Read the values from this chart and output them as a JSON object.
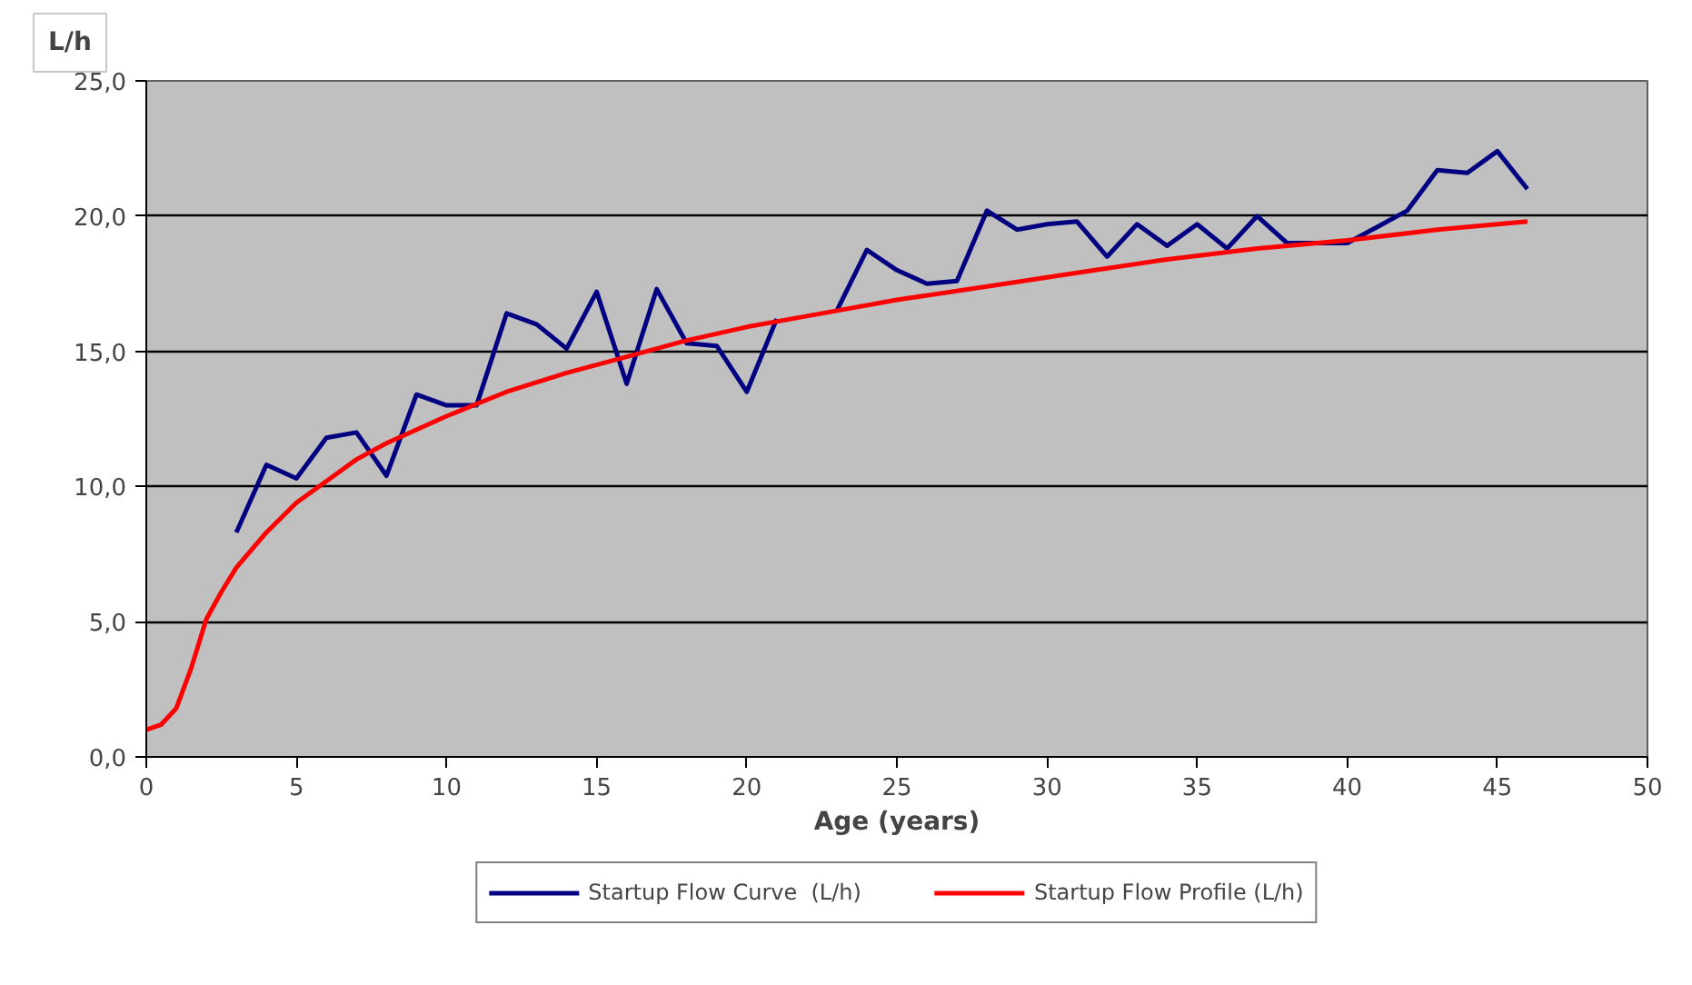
{
  "chart_data": {
    "type": "line",
    "xlabel": "Age (years)",
    "ylabel": "L/h",
    "xlim": [
      0,
      50
    ],
    "ylim": [
      0,
      25
    ],
    "xticks": [
      0,
      5,
      10,
      15,
      20,
      25,
      30,
      35,
      40,
      45,
      50
    ],
    "yticks": [
      {
        "value": 0,
        "label": "0,0"
      },
      {
        "value": 5,
        "label": "5,0"
      },
      {
        "value": 10,
        "label": "10,0"
      },
      {
        "value": 15,
        "label": "15,0"
      },
      {
        "value": 20,
        "label": "20,0"
      },
      {
        "value": 25,
        "label": "25,0"
      }
    ],
    "grid": "y",
    "legend": "bottom",
    "marker": "none",
    "line_style": "solid",
    "series": [
      {
        "name": "Startup Flow Curve  (L/h)",
        "color": "#000080",
        "x": [
          3,
          4,
          5,
          6,
          7,
          8,
          9,
          10,
          11,
          12,
          13,
          14,
          15,
          16,
          17,
          18,
          19,
          20,
          21,
          22,
          23,
          24,
          25,
          26,
          27,
          28,
          29,
          30,
          31,
          32,
          33,
          34,
          35,
          36,
          37,
          38,
          39,
          40,
          41,
          42,
          43,
          44,
          45,
          46
        ],
        "values": [
          8.3,
          10.8,
          10.3,
          11.8,
          12.0,
          10.4,
          13.4,
          13.0,
          13.0,
          16.4,
          16.0,
          15.1,
          17.2,
          13.8,
          17.3,
          15.3,
          15.2,
          13.5,
          16.2,
          null,
          16.5,
          18.75,
          18.0,
          17.5,
          17.6,
          20.2,
          19.5,
          19.7,
          19.8,
          18.5,
          19.7,
          18.9,
          19.7,
          18.8,
          20.0,
          19.0,
          19.0,
          19.0,
          19.6,
          20.2,
          21.7,
          21.6,
          22.4,
          21.0
        ]
      },
      {
        "name": "Startup Flow Profile (L/h)",
        "color": "#ff0000",
        "x": [
          0,
          0.5,
          1,
          1.5,
          2,
          2.5,
          3,
          4,
          5,
          6,
          7,
          8,
          10,
          12,
          14,
          16,
          18,
          20,
          22,
          25,
          28,
          31,
          34,
          37,
          40,
          43,
          46
        ],
        "values": [
          1.0,
          1.2,
          1.8,
          3.3,
          5.1,
          6.1,
          7.0,
          8.3,
          9.4,
          10.2,
          11.0,
          11.6,
          12.6,
          13.5,
          14.2,
          14.8,
          15.4,
          15.9,
          16.3,
          16.9,
          17.4,
          17.9,
          18.4,
          18.8,
          19.1,
          19.5,
          19.8
        ]
      }
    ]
  }
}
